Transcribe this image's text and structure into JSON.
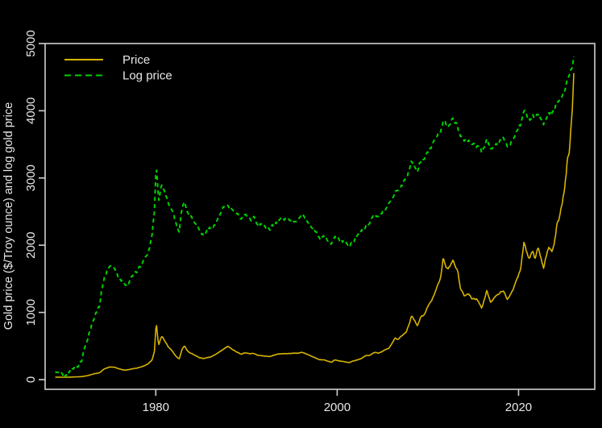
{
  "chart_data": {
    "type": "line",
    "title": "",
    "xlabel": "",
    "ylabel": "Gold price ($/Troy ounce) and log gold price",
    "x_ticks": [
      1980,
      2000,
      2020
    ],
    "y_ticks": [
      0,
      1000,
      2000,
      3000,
      4000,
      5000
    ],
    "xlim": [
      1967.8,
      2028.4
    ],
    "ylim": [
      -144,
      5000
    ],
    "grid": "off",
    "legend_position": "top-left",
    "background_color": "#000000",
    "axis_color": "#cfcfcf",
    "text_color": "#e8e8e8",
    "legend": [
      {
        "label": "Price",
        "style": "solid"
      },
      {
        "label": "Log price",
        "style": "dashed"
      }
    ],
    "series": [
      {
        "name": "Price",
        "color": "#d8b400",
        "style": "solid",
        "units": "$/Troy ounce",
        "anchors": [
          [
            1968.92,
            37
          ],
          [
            1970,
            36
          ],
          [
            1971,
            40
          ],
          [
            1971.8,
            44
          ],
          [
            1972.5,
            60
          ],
          [
            1973.3,
            90
          ],
          [
            1973.8,
            102
          ],
          [
            1974.3,
            158
          ],
          [
            1974.9,
            190
          ],
          [
            1975.5,
            183
          ],
          [
            1976.2,
            150
          ],
          [
            1976.7,
            140
          ],
          [
            1977.3,
            155
          ],
          [
            1978,
            175
          ],
          [
            1978.7,
            205
          ],
          [
            1979.2,
            240
          ],
          [
            1979.6,
            300
          ],
          [
            1979.85,
            430
          ],
          [
            1980.05,
            852
          ],
          [
            1980.3,
            510
          ],
          [
            1980.5,
            600
          ],
          [
            1980.7,
            655
          ],
          [
            1981,
            570
          ],
          [
            1981.4,
            480
          ],
          [
            1981.8,
            425
          ],
          [
            1982.3,
            335
          ],
          [
            1982.6,
            310
          ],
          [
            1982.9,
            450
          ],
          [
            1983.15,
            500
          ],
          [
            1983.6,
            415
          ],
          [
            1984.1,
            380
          ],
          [
            1984.6,
            345
          ],
          [
            1985.2,
            310
          ],
          [
            1985.8,
            330
          ],
          [
            1986.3,
            350
          ],
          [
            1986.8,
            390
          ],
          [
            1987.4,
            450
          ],
          [
            1987.95,
            495
          ],
          [
            1988.4,
            450
          ],
          [
            1988.9,
            420
          ],
          [
            1989.4,
            380
          ],
          [
            1989.9,
            405
          ],
          [
            1990.3,
            378
          ],
          [
            1990.8,
            388
          ],
          [
            1991.3,
            362
          ],
          [
            1992,
            348
          ],
          [
            1992.6,
            338
          ],
          [
            1993.4,
            382
          ],
          [
            1994,
            387
          ],
          [
            1994.7,
            382
          ],
          [
            1995.5,
            386
          ],
          [
            1996.1,
            405
          ],
          [
            1996.7,
            382
          ],
          [
            1997.3,
            340
          ],
          [
            1998,
            296
          ],
          [
            1998.6,
            291
          ],
          [
            1999.4,
            257
          ],
          [
            1999.7,
            300
          ],
          [
            2000.1,
            283
          ],
          [
            2000.7,
            272
          ],
          [
            2001.3,
            258
          ],
          [
            2001.9,
            278
          ],
          [
            2002.6,
            315
          ],
          [
            2003.1,
            350
          ],
          [
            2003.6,
            362
          ],
          [
            2004.1,
            410
          ],
          [
            2004.6,
            396
          ],
          [
            2005.1,
            428
          ],
          [
            2005.7,
            470
          ],
          [
            2006.4,
            620
          ],
          [
            2006.7,
            590
          ],
          [
            2007.1,
            650
          ],
          [
            2007.6,
            700
          ],
          [
            2008.2,
            945
          ],
          [
            2008.55,
            870
          ],
          [
            2008.85,
            790
          ],
          [
            2009.2,
            920
          ],
          [
            2009.6,
            960
          ],
          [
            2010,
            1090
          ],
          [
            2010.5,
            1200
          ],
          [
            2011,
            1380
          ],
          [
            2011.4,
            1500
          ],
          [
            2011.7,
            1820
          ],
          [
            2011.95,
            1680
          ],
          [
            2012.2,
            1640
          ],
          [
            2012.75,
            1760
          ],
          [
            2013.1,
            1660
          ],
          [
            2013.3,
            1590
          ],
          [
            2013.6,
            1330
          ],
          [
            2014,
            1250
          ],
          [
            2014.4,
            1300
          ],
          [
            2014.9,
            1200
          ],
          [
            2015.4,
            1190
          ],
          [
            2015.95,
            1070
          ],
          [
            2016.5,
            1330
          ],
          [
            2016.95,
            1140
          ],
          [
            2017.5,
            1250
          ],
          [
            2017.95,
            1300
          ],
          [
            2018.3,
            1330
          ],
          [
            2018.75,
            1200
          ],
          [
            2019.2,
            1290
          ],
          [
            2019.6,
            1420
          ],
          [
            2019.9,
            1520
          ],
          [
            2020.2,
            1610
          ],
          [
            2020.6,
            2040
          ],
          [
            2020.9,
            1890
          ],
          [
            2021.2,
            1790
          ],
          [
            2021.55,
            1900
          ],
          [
            2021.8,
            1810
          ],
          [
            2022.2,
            1970
          ],
          [
            2022.5,
            1830
          ],
          [
            2022.75,
            1660
          ],
          [
            2023.05,
            1870
          ],
          [
            2023.35,
            1990
          ],
          [
            2023.7,
            1930
          ],
          [
            2023.95,
            2040
          ],
          [
            2024.25,
            2320
          ],
          [
            2024.55,
            2410
          ],
          [
            2024.85,
            2630
          ],
          [
            2025,
            2750
          ],
          [
            2025.2,
            2990
          ],
          [
            2025.4,
            3310
          ],
          [
            2025.55,
            3320
          ],
          [
            2025.75,
            3680
          ],
          [
            2025.95,
            4050
          ],
          [
            2026.05,
            4350
          ],
          [
            2026.15,
            4810
          ]
        ]
      },
      {
        "name": "Log price",
        "color": "#00cf00",
        "style": "dashed",
        "derived_from": "Price",
        "transform": {
          "type": "a_plus_b_ln_price",
          "a": -3399,
          "b": 971
        }
      }
    ],
    "noise": {
      "seed": 42,
      "price_amp": 0.02,
      "log_amp": 0.05,
      "step_months": 1
    }
  }
}
